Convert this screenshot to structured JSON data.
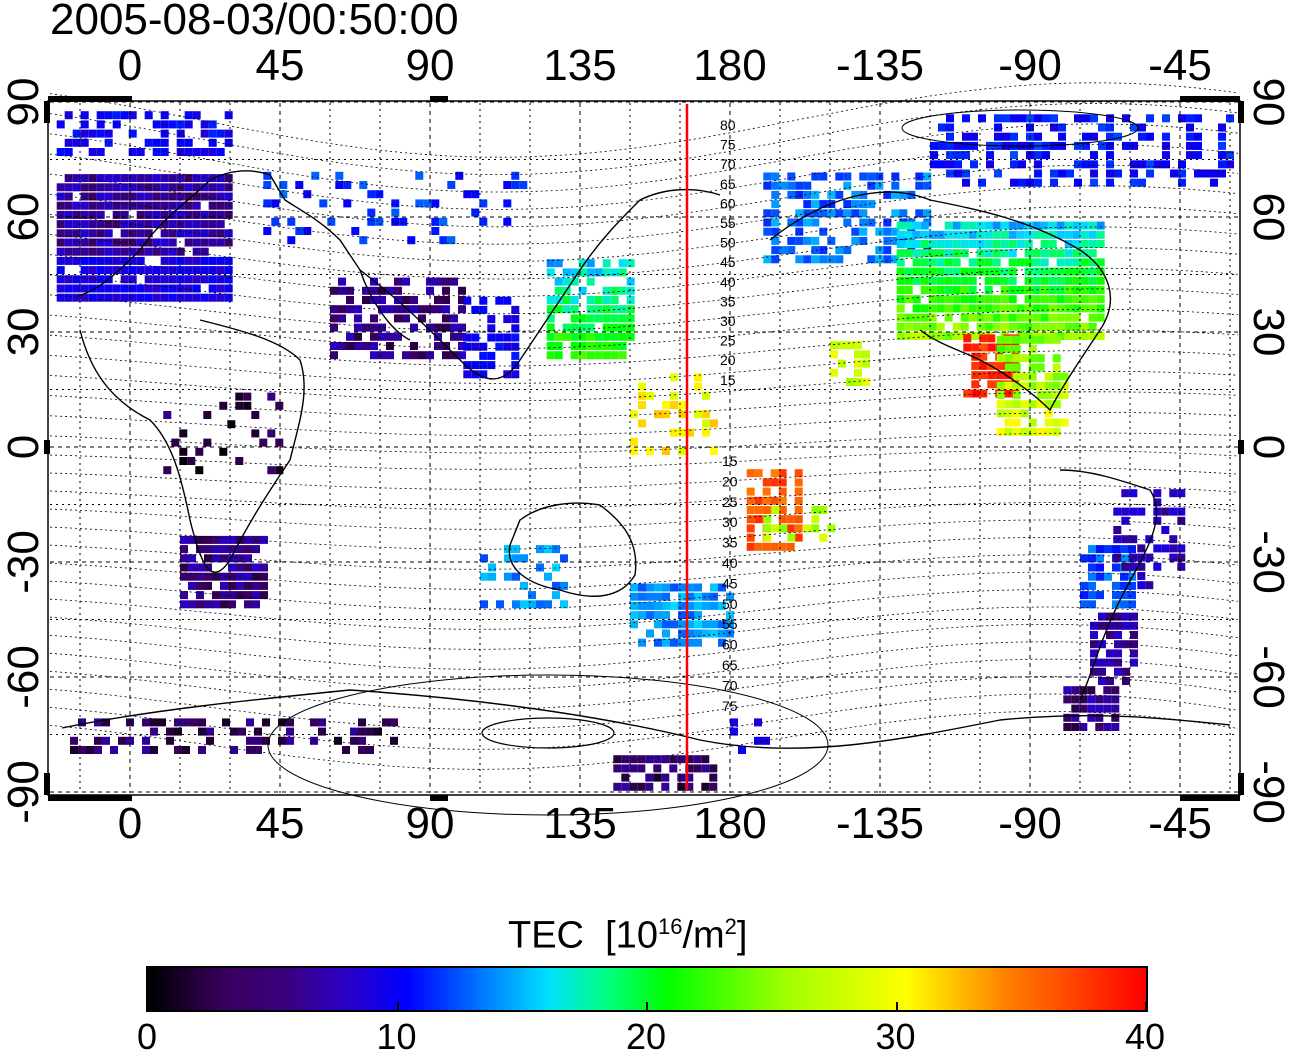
{
  "title": "2005-08-03/00:50:00",
  "lon_ticks": [
    "0",
    "45",
    "90",
    "135",
    "180",
    "-135",
    "-90",
    "-45"
  ],
  "lat_ticks": [
    "90",
    "60",
    "30",
    "0",
    "-30",
    "-60",
    "-90"
  ],
  "magnetic_lat_labels_upper": [
    "80",
    "75",
    "70",
    "65",
    "60",
    "55",
    "50",
    "45",
    "40",
    "35",
    "30",
    "25",
    "20",
    "15"
  ],
  "magnetic_lat_labels_lower": [
    "15",
    "20",
    "25",
    "30",
    "35",
    "40",
    "45",
    "50",
    "55",
    "60",
    "65",
    "70",
    "75"
  ],
  "colorbar": {
    "title": "TEC",
    "unit_prefix": "[10",
    "unit_exp": "16",
    "unit_mid": "/m",
    "unit_exp2": "2",
    "unit_suffix": "]",
    "ticks": [
      "0",
      "10",
      "20",
      "30",
      "40"
    ],
    "range": [
      0,
      40
    ]
  },
  "reference_meridian_lon": 168,
  "colors": {
    "meridian": "#ff0000",
    "low": "#000000",
    "high": "#ff0000"
  }
}
